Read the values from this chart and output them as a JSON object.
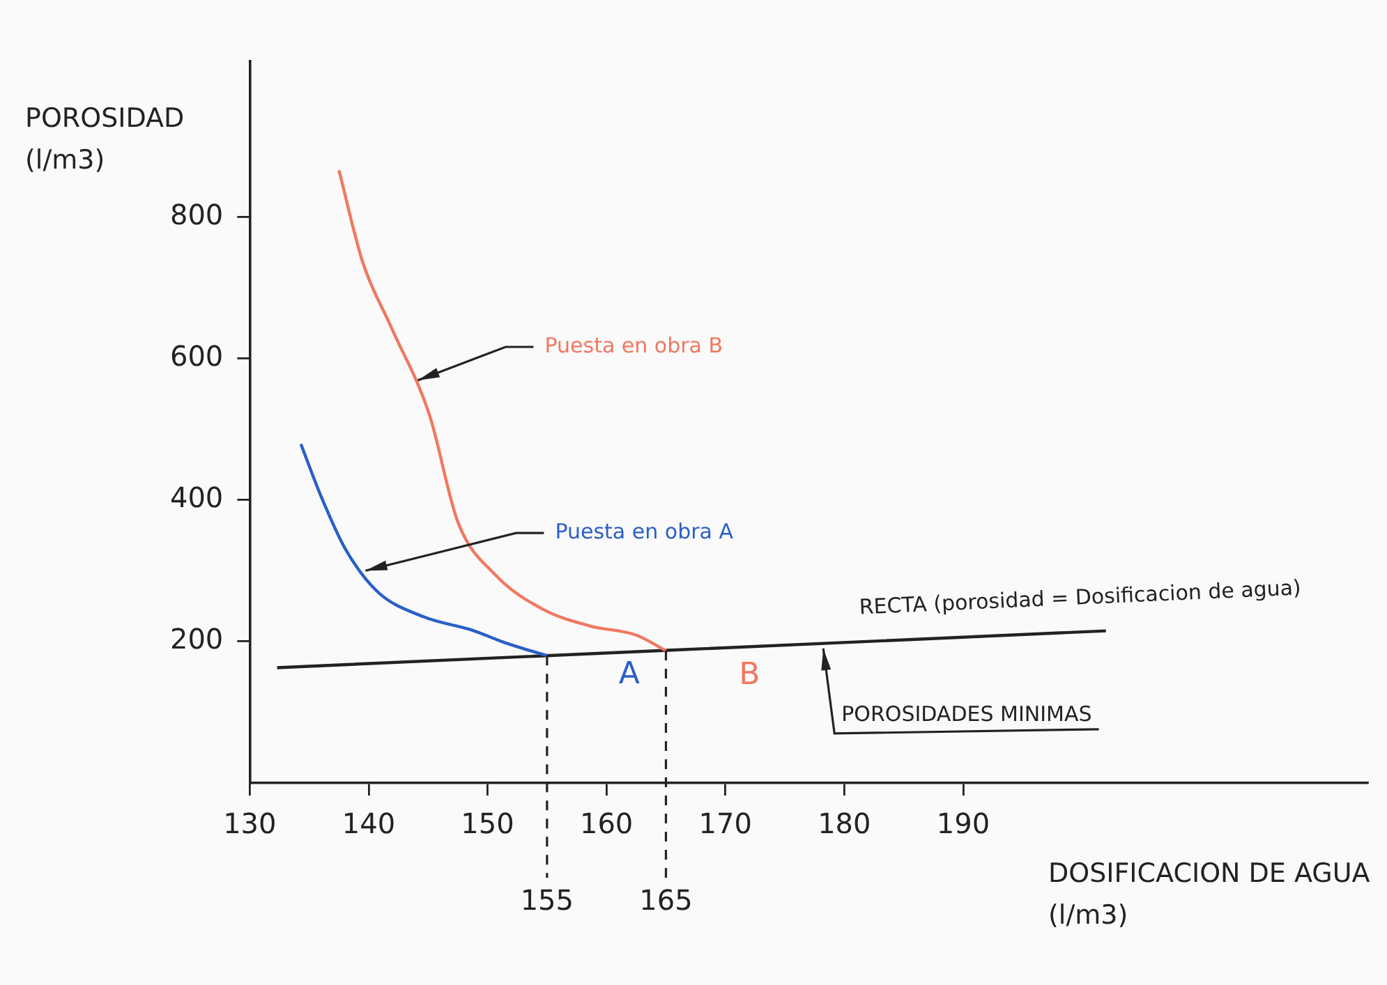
{
  "chart_data": {
    "type": "line",
    "xlabel": "DOSIFICACION DE AGUA (l/m3)",
    "ylabel": "POROSIDAD (l/m3)",
    "xlim": [
      130,
      224
    ],
    "xticks": [
      130,
      140,
      150,
      160,
      170,
      180,
      190
    ],
    "ylim": [
      0,
      1020
    ],
    "yticks": [
      200,
      400,
      600,
      800
    ],
    "grid": false,
    "legend": false,
    "marker": "none",
    "line_style": "solid",
    "series": [
      {
        "name": "Puesta en obra A",
        "color": "#2a5fc8",
        "x": [
          134.3,
          136,
          138,
          140.7,
          144.6,
          148.7,
          151.5,
          153.8,
          155
        ],
        "values": [
          479,
          405,
          332,
          271,
          235,
          216,
          198,
          186,
          180
        ]
      },
      {
        "name": "Puesta en obra B",
        "color": "#f07860",
        "x": [
          137.5,
          139.5,
          141.9,
          145.1,
          147.5,
          150.6,
          154.6,
          158.6,
          162.5,
          165
        ],
        "values": [
          866,
          736,
          644,
          521,
          369,
          295,
          246,
          222,
          209,
          187
        ]
      },
      {
        "name": "RECTA (porosidad = Dosificacion de agua)",
        "color": "#222222",
        "x": [
          132.3,
          202
        ],
        "values": [
          163,
          215
        ]
      }
    ],
    "ref_lines": [
      {
        "axis": "x",
        "value": 155,
        "label": "155",
        "line_style": "dashed",
        "color": "#222222"
      },
      {
        "axis": "x",
        "value": 165,
        "label": "165",
        "line_style": "dashed",
        "color": "#222222"
      }
    ],
    "annotations": [
      {
        "text": "A",
        "x": 155,
        "y": 180
      },
      {
        "text": "B",
        "x": 165,
        "y": 187
      },
      {
        "text": "POROSIDADES MINIMAS",
        "x": 178,
        "y": 198
      }
    ]
  }
}
